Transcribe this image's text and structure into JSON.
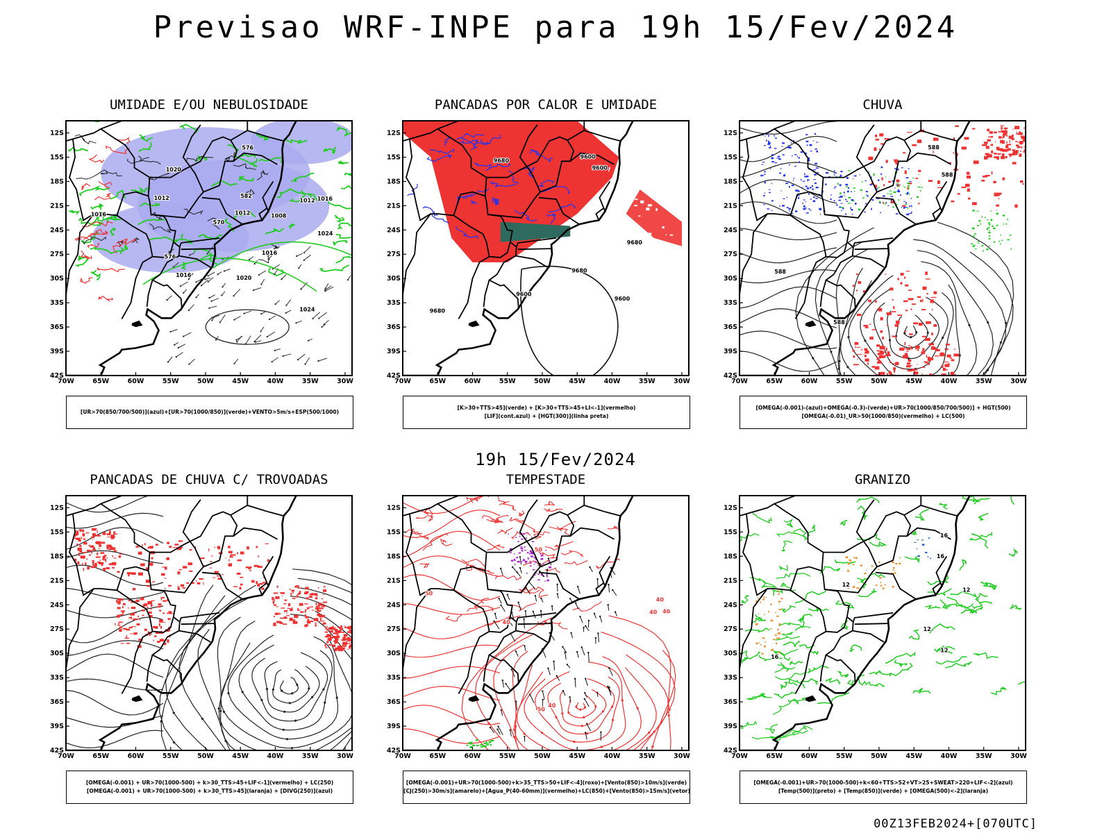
{
  "title": "Previsao WRF-INPE  para 19h 15/Fev/2024",
  "subtitle": "19h 15/Fev/2024",
  "footer": "00Z13FEB2024+[070UTC]",
  "axis": {
    "lat_labels": [
      "12S",
      "15S",
      "18S",
      "21S",
      "24S",
      "27S",
      "30S",
      "33S",
      "36S",
      "39S",
      "42S"
    ],
    "lon_labels": [
      "70W",
      "65W",
      "60W",
      "55W",
      "50W",
      "45W",
      "40W",
      "35W",
      "30W"
    ]
  },
  "colors": {
    "blue": "#2233ee",
    "lavender": "#aaaaf0",
    "green": "#22cc22",
    "red": "#ee3333",
    "orange": "#ee8822",
    "purple": "#aa22cc",
    "teal": "#2e6b5e"
  },
  "panels": [
    {
      "title": "UMIDADE E/OU NEBULOSIDADE",
      "legend": [
        "[UR>70(850/700/500)](azul)+[UR>70(1000/850)](verde)+VENTO>5m/s+ESP(500/1000)"
      ],
      "contour_labels": [
        "1012",
        "1012",
        "1016",
        "1016",
        "1012",
        "1016",
        "1020",
        "1020",
        "1024",
        "1024",
        "1016",
        "1008",
        "576",
        "576",
        "582",
        "570"
      ]
    },
    {
      "title": "PANCADAS POR CALOR E UMIDADE",
      "legend": [
        "[K>30+TTS>45](verde) + [K>30+TTS>45+LI<-1](vermelho)",
        "[LIF](cont.azul) + [HGT(300)](linha preta)"
      ],
      "contour_labels": [
        "9680",
        "9680",
        "9680",
        "9600",
        "9600",
        "9600",
        "9680",
        "9600"
      ]
    },
    {
      "title": "CHUVA",
      "legend": [
        "[OMEGA(-0.001)-(azul)+OMEGA(-0.3)-(verde)+UR>70(1000/850/700/500)] + HGT(500)",
        "[OMEGA(-0.01)_UR>50(1000/850)(vermelho) + LC(500)"
      ],
      "contour_labels": [
        "588",
        "588",
        "588",
        "588"
      ]
    },
    {
      "title": "PANCADAS DE CHUVA C/ TROVOADAS",
      "legend": [
        "[OMEGA(-0.001) + UR>70(1000-500) + k>30_TTS>45+LIF<-1](vermelho) + LC(250)",
        "[OMEGA(-0.001) + UR>70(1000-500) + k>30_TTS>45](laranja) + [DIVG(250)](azul)"
      ],
      "contour_labels": []
    },
    {
      "title": "TEMPESTADE",
      "legend": [
        "[OMEGA(-0.001)+UR>70(1000-500)+k>35_TTS>50+LIF<-4](roxo)+[Vento(850)>10m/s](verde)",
        "[CJ(250)>30m/s](amarelo)+[Agua_P(40-60mm)](vermelho)+LC(850)+[Vento(850)>15m/s](vetor)"
      ],
      "contour_labels": [
        "40",
        "40",
        "50",
        "50",
        "40",
        "40",
        "50",
        "40"
      ]
    },
    {
      "title": "GRANIZO",
      "legend": [
        "[OMEGA(-0.001)+UR>70(1000-500)+k<60+TTS>52+VT>25+SWEAT>220+LIF<-2](azul)",
        "[Temp(500)](preto) + [Temp(850)](verde) + [OMEGA(500)<-2](laranja)"
      ],
      "contour_labels": [
        "12",
        "16",
        "12",
        "12",
        "16",
        "16",
        "12"
      ]
    }
  ]
}
